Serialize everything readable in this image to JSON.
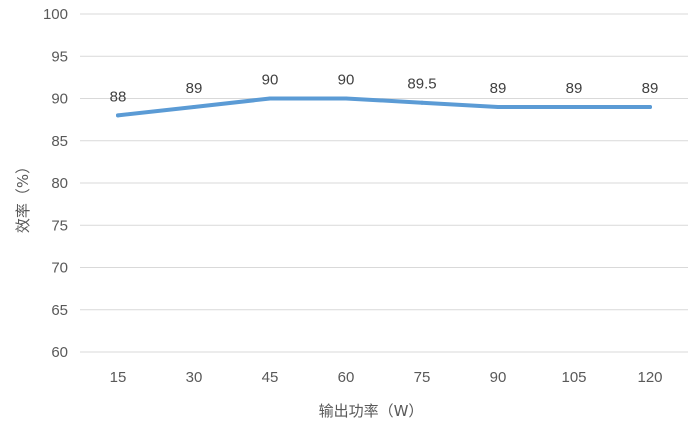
{
  "chart_data": {
    "type": "line",
    "title": "",
    "xlabel": "输出功率（W）",
    "ylabel": "效率（%）",
    "categories": [
      "15",
      "30",
      "45",
      "60",
      "75",
      "90",
      "105",
      "120"
    ],
    "series": [
      {
        "values": [
          88,
          89,
          90,
          90,
          89.5,
          89,
          89,
          89
        ],
        "data_labels": [
          "88",
          "89",
          "90",
          "90",
          "89.5",
          "89",
          "89",
          "89"
        ],
        "color": "#5b9bd5"
      }
    ],
    "ylim": [
      60,
      100
    ],
    "y_ticks": [
      "60",
      "65",
      "70",
      "75",
      "80",
      "85",
      "90",
      "95",
      "100"
    ],
    "grid": true,
    "legend": "none"
  }
}
